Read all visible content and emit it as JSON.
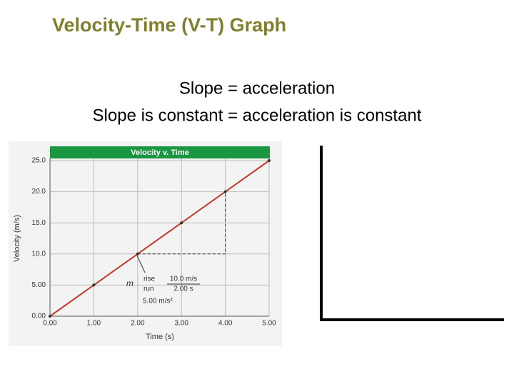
{
  "header": {
    "title": "Velocity-Time (V-T) Graph"
  },
  "body": {
    "lines": [
      "Slope = acceleration",
      "Slope is constant = acceleration is constant"
    ]
  },
  "chart_data": {
    "type": "line",
    "title": "Velocity v. Time",
    "x_label": "Time (s)",
    "y_label": "Velocity (m/s)",
    "x": [
      0,
      1,
      2,
      3,
      4,
      5
    ],
    "values": [
      0,
      5,
      10,
      15,
      20,
      25
    ],
    "color": "#c0392b",
    "xlim": [
      0,
      5
    ],
    "ylim": [
      0,
      25
    ],
    "xticks": [
      {
        "value": 0,
        "label": "0.00"
      },
      {
        "value": 1,
        "label": "1.00"
      },
      {
        "value": 2,
        "label": "2.00"
      },
      {
        "value": 3,
        "label": "3.00"
      },
      {
        "value": 4,
        "label": "4.00"
      },
      {
        "value": 5,
        "label": "5.00"
      }
    ],
    "yticks": [
      {
        "value": 0,
        "label": "0.00"
      },
      {
        "value": 5,
        "label": "5.00"
      },
      {
        "value": 10,
        "label": "10.0"
      },
      {
        "value": 15,
        "label": "15.0"
      },
      {
        "value": 20,
        "label": "20.0"
      },
      {
        "value": 25,
        "label": "25.0"
      }
    ],
    "grid": true,
    "annotations": {
      "slope_symbol": "m",
      "rise": "rise",
      "run": "run",
      "rise_value": "10.0 m/s",
      "run_value": "2.00 s",
      "result": "5.00 m/s²"
    }
  }
}
